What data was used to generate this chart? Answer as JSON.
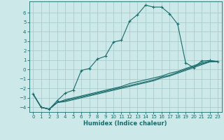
{
  "title": "",
  "xlabel": "Humidex (Indice chaleur)",
  "background_color": "#cce8e8",
  "grid_color": "#aacccc",
  "line_color": "#1a6b6b",
  "xlim": [
    -0.5,
    23.5
  ],
  "ylim": [
    -4.5,
    7.2
  ],
  "xticks": [
    0,
    1,
    2,
    3,
    4,
    5,
    6,
    7,
    8,
    9,
    10,
    11,
    12,
    13,
    14,
    15,
    16,
    17,
    18,
    19,
    20,
    21,
    22,
    23
  ],
  "yticks": [
    -4,
    -3,
    -2,
    -1,
    0,
    1,
    2,
    3,
    4,
    5,
    6
  ],
  "curve1_x": [
    0,
    1,
    2,
    3,
    4,
    5,
    6,
    7,
    8,
    9,
    10,
    11,
    12,
    13,
    14,
    15,
    16,
    17,
    18,
    19,
    20,
    21,
    22,
    23
  ],
  "curve1_y": [
    -2.6,
    -4.0,
    -4.2,
    -3.3,
    -2.5,
    -2.2,
    -0.1,
    0.1,
    1.1,
    1.4,
    2.9,
    3.1,
    5.1,
    5.8,
    6.8,
    6.6,
    6.6,
    5.9,
    4.8,
    0.7,
    0.2,
    0.9,
    0.95,
    0.85
  ],
  "curve2_x": [
    0,
    1,
    2,
    3,
    4,
    5,
    6,
    7,
    8,
    9,
    10,
    11,
    12,
    13,
    14,
    15,
    16,
    17,
    18,
    19,
    20,
    21,
    22,
    23
  ],
  "curve2_y": [
    -2.6,
    -4.0,
    -4.2,
    -3.5,
    -3.2,
    -3.0,
    -2.8,
    -2.6,
    -2.4,
    -2.2,
    -2.0,
    -1.8,
    -1.5,
    -1.3,
    -1.1,
    -0.9,
    -0.7,
    -0.4,
    -0.2,
    0.1,
    0.4,
    0.7,
    0.9,
    0.85
  ],
  "curve3_x": [
    0,
    1,
    2,
    3,
    4,
    5,
    6,
    7,
    8,
    9,
    10,
    11,
    12,
    13,
    14,
    15,
    16,
    17,
    18,
    19,
    20,
    21,
    22,
    23
  ],
  "curve3_y": [
    -2.6,
    -4.0,
    -4.2,
    -3.5,
    -3.3,
    -3.1,
    -2.9,
    -2.7,
    -2.5,
    -2.3,
    -2.1,
    -1.9,
    -1.7,
    -1.5,
    -1.3,
    -1.1,
    -0.8,
    -0.6,
    -0.3,
    0.0,
    0.3,
    0.6,
    0.8,
    0.85
  ],
  "curve4_x": [
    0,
    1,
    2,
    3,
    4,
    5,
    6,
    7,
    8,
    9,
    10,
    11,
    12,
    13,
    14,
    15,
    16,
    17,
    18,
    19,
    20,
    21,
    22,
    23
  ],
  "curve4_y": [
    -2.6,
    -4.0,
    -4.2,
    -3.5,
    -3.4,
    -3.2,
    -3.0,
    -2.8,
    -2.6,
    -2.4,
    -2.2,
    -2.0,
    -1.8,
    -1.6,
    -1.4,
    -1.2,
    -0.9,
    -0.7,
    -0.4,
    -0.1,
    0.2,
    0.5,
    0.8,
    0.85
  ]
}
